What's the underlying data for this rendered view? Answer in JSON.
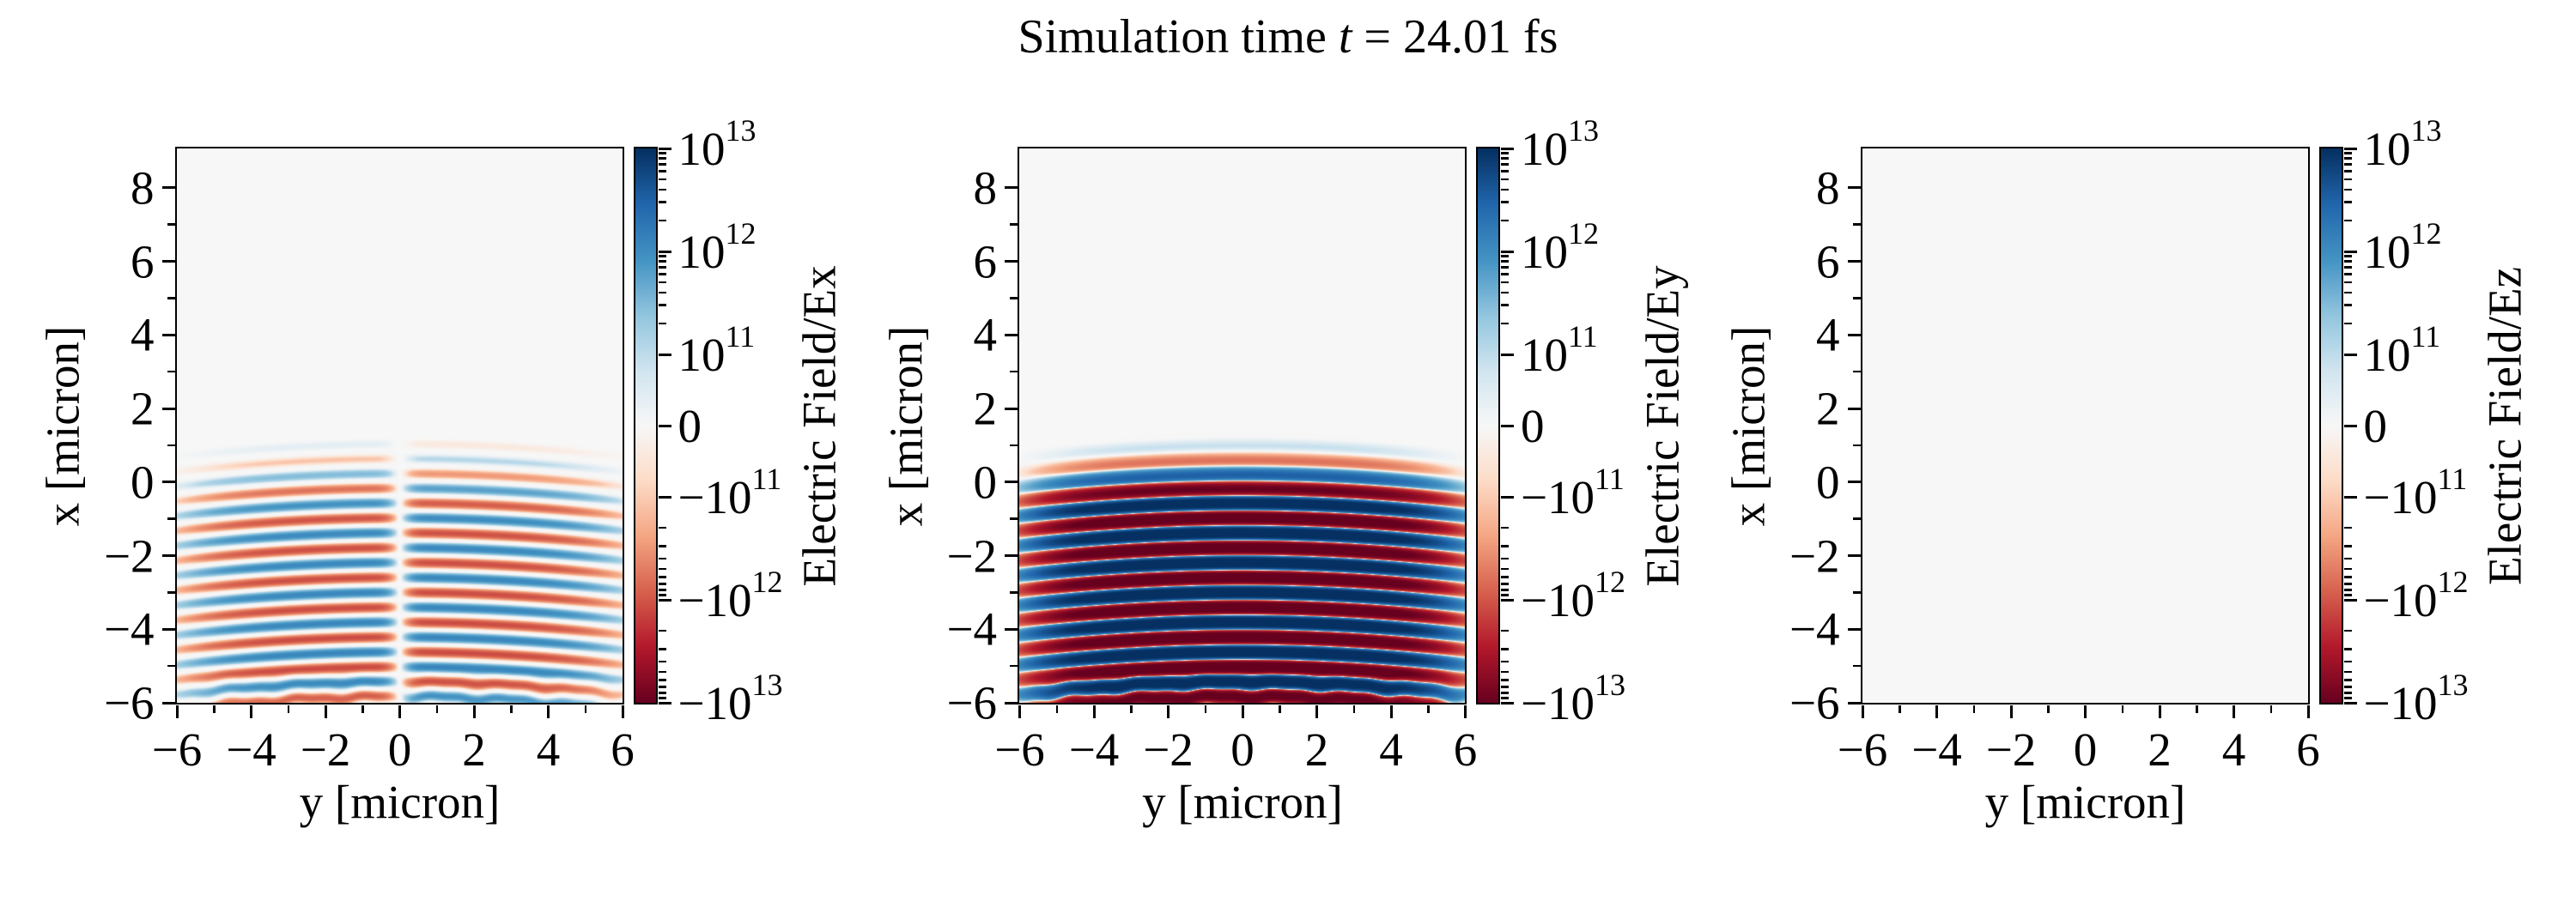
{
  "title": {
    "prefix": "Simulation time ",
    "variable": "t",
    "suffix": " = 24.01 fs"
  },
  "panels": [
    {
      "component": "Ex",
      "xlabel": "y [micron]",
      "ylabel": "x [micron]",
      "colorbar_label": "Electric Field/Ex",
      "xticks": [
        -6,
        -4,
        -2,
        0,
        2,
        4,
        6
      ],
      "xminor": [
        -5,
        -3,
        -1,
        1,
        3,
        5
      ],
      "yticks": [
        8,
        6,
        4,
        2,
        0,
        -2,
        -4,
        -6
      ],
      "yminor": [
        7,
        5,
        3,
        1,
        -1,
        -3,
        -5
      ],
      "colorbar_ticks": [
        "1e13",
        "1e12",
        "1e11",
        "0",
        "-1e11",
        "-1e12",
        "-1e13"
      ]
    },
    {
      "component": "Ey",
      "xlabel": "y [micron]",
      "ylabel": "x [micron]",
      "colorbar_label": "Electric Field/Ey",
      "xticks": [
        -6,
        -4,
        -2,
        0,
        2,
        4,
        6
      ],
      "xminor": [
        -5,
        -3,
        -1,
        1,
        3,
        5
      ],
      "yticks": [
        8,
        6,
        4,
        2,
        0,
        -2,
        -4,
        -6
      ],
      "yminor": [
        7,
        5,
        3,
        1,
        -1,
        -3,
        -5
      ],
      "colorbar_ticks": [
        "1e13",
        "1e12",
        "1e11",
        "0",
        "-1e11",
        "-1e12",
        "-1e13"
      ]
    },
    {
      "component": "Ez",
      "xlabel": "y [micron]",
      "ylabel": "x [micron]",
      "colorbar_label": "Electric Field/Ez",
      "xticks": [
        -6,
        -4,
        -2,
        0,
        2,
        4,
        6
      ],
      "xminor": [
        -5,
        -3,
        -1,
        1,
        3,
        5
      ],
      "yticks": [
        8,
        6,
        4,
        2,
        0,
        -2,
        -4,
        -6
      ],
      "yminor": [
        7,
        5,
        3,
        1,
        -1,
        -3,
        -5
      ],
      "colorbar_ticks": [
        "1e13",
        "1e12",
        "1e11",
        "0",
        "-1e11",
        "-1e12",
        "-1e13"
      ]
    }
  ],
  "chart_data": {
    "type": "heatmap",
    "title": "Simulation time t = 24.01 fs",
    "xlabel": "y [micron]",
    "ylabel": "x [micron]",
    "xlim": [
      -6,
      6
    ],
    "ylim": [
      -6,
      9.07
    ],
    "value_scale": {
      "type": "symlog",
      "linthresh": 100000000000.0,
      "vmax": 10000000000000.0,
      "vmin": -10000000000000.0
    },
    "colormap": {
      "name": "RdBu",
      "stops": [
        "#67001f",
        "#b2182b",
        "#d6604d",
        "#f4a582",
        "#fddbc7",
        "#f7f7f7",
        "#d1e5f0",
        "#92c5de",
        "#4393c3",
        "#2166ac",
        "#053061"
      ]
    },
    "series": [
      {
        "name": "Electric Field/Ex",
        "model": {
          "type": "laser-pulse-stripes",
          "wavelength_micron": 0.81,
          "front_x_micron": 1.05,
          "wavefront_curvature": 0.0097,
          "peak_amplitude": 1100000000000.0,
          "ramp_center": -0.1,
          "ramp_width": 0.35,
          "cos_power": 3.0,
          "front_cutoff": 1.35,
          "antisymmetric_about_y0": true,
          "null_halfwidth_micron": 0.42,
          "edge_envelope_width": 5.4,
          "bottom_boost": 0.15,
          "bottom_fade": 0.4
        }
      },
      {
        "name": "Electric Field/Ey",
        "model": {
          "type": "laser-pulse-stripes",
          "wavelength_micron": 0.81,
          "front_x_micron": 1.05,
          "wavefront_curvature": 0.0097,
          "peak_amplitude": 16000000000000.0,
          "ramp_center": -0.07,
          "ramp_width": 0.21,
          "cos_power": 1.25,
          "front_cutoff": 1.35,
          "antisymmetric_about_y0": false,
          "edge_envelope_width": 5.15,
          "bottom_boost": 0,
          "bottom_fade": 0.3
        }
      },
      {
        "name": "Electric Field/Ez",
        "model": {
          "type": "uniform-zero",
          "peak_amplitude": 0
        }
      }
    ]
  }
}
